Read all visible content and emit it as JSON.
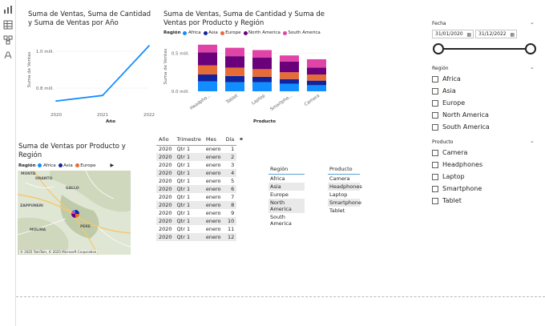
{
  "rail": {
    "icons": [
      "report-icon",
      "table-icon",
      "model-icon",
      "dax-icon"
    ]
  },
  "line_chart": {
    "title": "Suma de Ventas, Suma de Cantidad y Suma de Ventas por Año",
    "chart_data": {
      "type": "line",
      "x": [
        "2020",
        "2021",
        "2022"
      ],
      "values": [
        0.73,
        0.76,
        1.03
      ],
      "yticks": [
        "1.0 mill.",
        "0.8 mill."
      ],
      "ylabel": "Suma de Ventas",
      "xlabel": "Año",
      "ylim": [
        0.7,
        1.1
      ],
      "color": "#118dff"
    }
  },
  "bar_chart": {
    "title": "Suma de Ventas, Suma de Cantidad y Suma de Ventas por Producto y Región",
    "legend_label": "Región",
    "legend": [
      {
        "name": "Africa",
        "color": "#118dff"
      },
      {
        "name": "Asia",
        "color": "#12239e"
      },
      {
        "name": "Europe",
        "color": "#e66c37"
      },
      {
        "name": "North America",
        "color": "#6b007b"
      },
      {
        "name": "South America",
        "color": "#e044a7"
      }
    ],
    "chart_data": {
      "type": "bar",
      "categories": [
        "Headphones",
        "Tablet",
        "Laptop",
        "Smartphone",
        "Camera"
      ],
      "category_labels": [
        "Headpho...",
        "Tablet",
        "Laptop",
        "Smartpho...",
        "Camera"
      ],
      "series": [
        {
          "name": "Africa",
          "values": [
            0.13,
            0.12,
            0.12,
            0.1,
            0.08
          ]
        },
        {
          "name": "Asia",
          "values": [
            0.09,
            0.08,
            0.07,
            0.06,
            0.06
          ]
        },
        {
          "name": "Europe",
          "values": [
            0.12,
            0.11,
            0.1,
            0.09,
            0.08
          ]
        },
        {
          "name": "North America",
          "values": [
            0.17,
            0.15,
            0.15,
            0.14,
            0.09
          ]
        },
        {
          "name": "South America",
          "values": [
            0.1,
            0.11,
            0.1,
            0.08,
            0.11
          ]
        }
      ],
      "yticks": [
        "0.5 mill.",
        "0.0 mill."
      ],
      "ylabel": "Suma de Ventas",
      "xlabel": "Producto",
      "ylim": [
        0,
        0.65
      ]
    }
  },
  "map_visual": {
    "title": "Suma de Ventas por Producto y Región",
    "legend_label": "Región",
    "legend": [
      {
        "name": "Africa",
        "color": "#118dff"
      },
      {
        "name": "Asia",
        "color": "#12239e"
      },
      {
        "name": "Europe",
        "color": "#e66c37"
      }
    ],
    "place_labels": [
      "GALLO",
      "ZAPPUNERI",
      "ORANTO",
      "MONTA",
      "PERE",
      "MOLINA"
    ],
    "credit": "© 2025 TomTom, © 2025 Microsoft Corporation"
  },
  "table": {
    "columns": [
      "Año",
      "Trimestre",
      "Mes",
      "Día"
    ],
    "rows": [
      [
        "2020",
        "Qtr 1",
        "enero",
        "1"
      ],
      [
        "2020",
        "Qtr 1",
        "enero",
        "2"
      ],
      [
        "2020",
        "Qtr 1",
        "enero",
        "3"
      ],
      [
        "2020",
        "Qtr 1",
        "enero",
        "4"
      ],
      [
        "2020",
        "Qtr 1",
        "enero",
        "5"
      ],
      [
        "2020",
        "Qtr 1",
        "enero",
        "6"
      ],
      [
        "2020",
        "Qtr 1",
        "enero",
        "7"
      ],
      [
        "2020",
        "Qtr 1",
        "enero",
        "8"
      ],
      [
        "2020",
        "Qtr 1",
        "enero",
        "9"
      ],
      [
        "2020",
        "Qtr 1",
        "enero",
        "10"
      ],
      [
        "2020",
        "Qtr 1",
        "enero",
        "11"
      ],
      [
        "2020",
        "Qtr 1",
        "enero",
        "12"
      ]
    ]
  },
  "region_list": {
    "header": "Región",
    "items": [
      "Africa",
      "Asia",
      "Europe",
      "North America",
      "South America"
    ]
  },
  "product_list": {
    "header": "Producto",
    "items": [
      "Camera",
      "Headphones",
      "Laptop",
      "Smartphone",
      "Tablet"
    ]
  },
  "date_slicer": {
    "title": "Fecha",
    "start": "31/01/2020",
    "end": "31/12/2022",
    "range_fraction": [
      0,
      1
    ]
  },
  "region_slicer": {
    "title": "Región",
    "options": [
      "Africa",
      "Asia",
      "Europe",
      "North America",
      "South America"
    ]
  },
  "product_slicer": {
    "title": "Producto",
    "options": [
      "Camera",
      "Headphones",
      "Laptop",
      "Smartphone",
      "Tablet"
    ]
  }
}
